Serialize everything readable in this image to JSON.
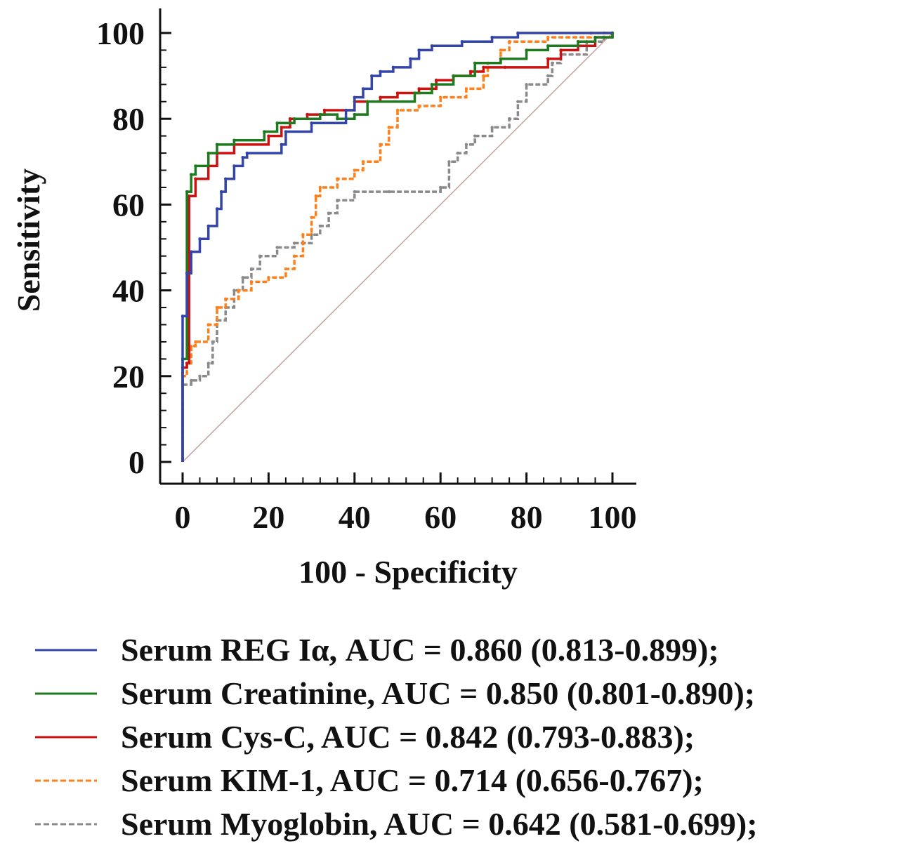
{
  "chart_data": {
    "type": "line",
    "title": "",
    "xlabel": "100 - Specificity",
    "ylabel": "Sensitivity",
    "xlim": [
      0,
      100
    ],
    "ylim": [
      0,
      100
    ],
    "x_ticks": [
      "0",
      "20",
      "40",
      "60",
      "80",
      "100"
    ],
    "y_ticks": [
      "0",
      "20",
      "40",
      "60",
      "80",
      "100"
    ],
    "grid": false,
    "legend_position": "bottom",
    "reference_line": {
      "color": "#c8a0a0",
      "points": [
        [
          0,
          0
        ],
        [
          100,
          100
        ]
      ]
    },
    "series": [
      {
        "name": "Serum REG Iα, AUC = 0.860 (0.813-0.899);",
        "color": "#3344aa",
        "dash": "solid",
        "points": [
          [
            0,
            0
          ],
          [
            0,
            34
          ],
          [
            1,
            34
          ],
          [
            1,
            44
          ],
          [
            2,
            44
          ],
          [
            2,
            49
          ],
          [
            4,
            49
          ],
          [
            4,
            52
          ],
          [
            6,
            52
          ],
          [
            6,
            55
          ],
          [
            8,
            55
          ],
          [
            8,
            59
          ],
          [
            9,
            59
          ],
          [
            9,
            63
          ],
          [
            10,
            63
          ],
          [
            10,
            66
          ],
          [
            12,
            66
          ],
          [
            12,
            69
          ],
          [
            14,
            69
          ],
          [
            14,
            71
          ],
          [
            15,
            71
          ],
          [
            15,
            72
          ],
          [
            23,
            72
          ],
          [
            23,
            74
          ],
          [
            24,
            74
          ],
          [
            24,
            77
          ],
          [
            30,
            77
          ],
          [
            30,
            79
          ],
          [
            38,
            79
          ],
          [
            38,
            82
          ],
          [
            40,
            82
          ],
          [
            40,
            85
          ],
          [
            42,
            85
          ],
          [
            42,
            87
          ],
          [
            44,
            87
          ],
          [
            44,
            90
          ],
          [
            46,
            90
          ],
          [
            46,
            91
          ],
          [
            49,
            91
          ],
          [
            49,
            92
          ],
          [
            53,
            92
          ],
          [
            53,
            94
          ],
          [
            55,
            94
          ],
          [
            55,
            96
          ],
          [
            58,
            96
          ],
          [
            58,
            97
          ],
          [
            65,
            97
          ],
          [
            65,
            98
          ],
          [
            72,
            98
          ],
          [
            72,
            99
          ],
          [
            78,
            99
          ],
          [
            78,
            100
          ],
          [
            100,
            100
          ]
        ]
      },
      {
        "name": "Serum Creatinine, AUC = 0.850 (0.801-0.890);",
        "color": "#1e7a1e",
        "dash": "solid",
        "points": [
          [
            0,
            0
          ],
          [
            0,
            24
          ],
          [
            1,
            24
          ],
          [
            1,
            63
          ],
          [
            2,
            63
          ],
          [
            2,
            67
          ],
          [
            3,
            67
          ],
          [
            3,
            69
          ],
          [
            6,
            69
          ],
          [
            6,
            72
          ],
          [
            8,
            72
          ],
          [
            8,
            74
          ],
          [
            12,
            74
          ],
          [
            12,
            75
          ],
          [
            19,
            75
          ],
          [
            19,
            77
          ],
          [
            22,
            77
          ],
          [
            22,
            79
          ],
          [
            26,
            79
          ],
          [
            26,
            80
          ],
          [
            32,
            80
          ],
          [
            32,
            81
          ],
          [
            36,
            81
          ],
          [
            36,
            80
          ],
          [
            40,
            80
          ],
          [
            40,
            81
          ],
          [
            43,
            81
          ],
          [
            43,
            84
          ],
          [
            54,
            84
          ],
          [
            54,
            86
          ],
          [
            58,
            86
          ],
          [
            58,
            88
          ],
          [
            63,
            88
          ],
          [
            63,
            90
          ],
          [
            68,
            90
          ],
          [
            68,
            93
          ],
          [
            74,
            93
          ],
          [
            74,
            94
          ],
          [
            80,
            94
          ],
          [
            80,
            96
          ],
          [
            85,
            96
          ],
          [
            85,
            97
          ],
          [
            92,
            97
          ],
          [
            92,
            98
          ],
          [
            96,
            98
          ],
          [
            96,
            99
          ],
          [
            100,
            99
          ],
          [
            100,
            100
          ]
        ]
      },
      {
        "name": "Serum Cys-C, AUC = 0.842 (0.793-0.883);",
        "color": "#cc1111",
        "dash": "solid",
        "points": [
          [
            0,
            0
          ],
          [
            0,
            22
          ],
          [
            1,
            22
          ],
          [
            1,
            23
          ],
          [
            1.5,
            23
          ],
          [
            1.5,
            62
          ],
          [
            3,
            62
          ],
          [
            3,
            66
          ],
          [
            6,
            66
          ],
          [
            6,
            69
          ],
          [
            8,
            69
          ],
          [
            8,
            72
          ],
          [
            12,
            72
          ],
          [
            12,
            74
          ],
          [
            20,
            74
          ],
          [
            20,
            76
          ],
          [
            23,
            76
          ],
          [
            23,
            78
          ],
          [
            25,
            78
          ],
          [
            25,
            80
          ],
          [
            29,
            80
          ],
          [
            29,
            81
          ],
          [
            33,
            81
          ],
          [
            33,
            82
          ],
          [
            40,
            82
          ],
          [
            40,
            84
          ],
          [
            46,
            84
          ],
          [
            46,
            85
          ],
          [
            50,
            85
          ],
          [
            50,
            86
          ],
          [
            55,
            86
          ],
          [
            55,
            87
          ],
          [
            59,
            87
          ],
          [
            59,
            89
          ],
          [
            63,
            89
          ],
          [
            63,
            90
          ],
          [
            67,
            90
          ],
          [
            67,
            91
          ],
          [
            70,
            91
          ],
          [
            70,
            92
          ],
          [
            75,
            92
          ],
          [
            75,
            92
          ],
          [
            85,
            92
          ],
          [
            85,
            94
          ],
          [
            88,
            94
          ],
          [
            88,
            96
          ],
          [
            92,
            96
          ],
          [
            92,
            97
          ],
          [
            96,
            97
          ],
          [
            96,
            99
          ],
          [
            100,
            99
          ],
          [
            100,
            100
          ]
        ]
      },
      {
        "name": "Serum KIM-1, AUC = 0.714 (0.656-0.767);",
        "color": "#ff7f1a",
        "dash": "dashed",
        "points": [
          [
            0,
            0
          ],
          [
            0,
            20
          ],
          [
            1,
            20
          ],
          [
            1,
            23
          ],
          [
            2,
            23
          ],
          [
            2,
            27
          ],
          [
            3,
            27
          ],
          [
            3,
            28
          ],
          [
            6,
            28
          ],
          [
            6,
            32
          ],
          [
            8,
            32
          ],
          [
            8,
            36
          ],
          [
            10,
            36
          ],
          [
            10,
            38
          ],
          [
            13,
            38
          ],
          [
            13,
            40
          ],
          [
            16,
            40
          ],
          [
            16,
            42
          ],
          [
            20,
            42
          ],
          [
            20,
            43
          ],
          [
            24,
            43
          ],
          [
            24,
            45
          ],
          [
            26,
            45
          ],
          [
            26,
            48
          ],
          [
            28,
            48
          ],
          [
            28,
            53
          ],
          [
            30,
            53
          ],
          [
            30,
            57
          ],
          [
            31,
            57
          ],
          [
            31,
            62
          ],
          [
            32,
            62
          ],
          [
            32,
            64
          ],
          [
            36,
            64
          ],
          [
            36,
            66
          ],
          [
            40,
            66
          ],
          [
            40,
            68
          ],
          [
            42,
            68
          ],
          [
            42,
            70
          ],
          [
            46,
            70
          ],
          [
            46,
            74
          ],
          [
            48,
            74
          ],
          [
            48,
            78
          ],
          [
            50,
            78
          ],
          [
            50,
            82
          ],
          [
            55,
            82
          ],
          [
            55,
            83
          ],
          [
            60,
            83
          ],
          [
            60,
            85
          ],
          [
            66,
            85
          ],
          [
            66,
            87
          ],
          [
            70,
            87
          ],
          [
            70,
            90
          ],
          [
            71,
            90
          ],
          [
            71,
            93
          ],
          [
            74,
            93
          ],
          [
            74,
            96
          ],
          [
            76,
            96
          ],
          [
            76,
            98
          ],
          [
            85,
            98
          ],
          [
            85,
            99
          ],
          [
            95,
            99
          ],
          [
            95,
            100
          ],
          [
            100,
            100
          ]
        ]
      },
      {
        "name": "Serum Myoglobin, AUC = 0.642 (0.581-0.699);",
        "color": "#8a8a8a",
        "dash": "dashed",
        "points": [
          [
            0,
            0
          ],
          [
            0,
            18
          ],
          [
            2,
            18
          ],
          [
            2,
            19
          ],
          [
            4,
            19
          ],
          [
            4,
            20
          ],
          [
            6,
            20
          ],
          [
            6,
            23
          ],
          [
            7,
            23
          ],
          [
            7,
            28
          ],
          [
            8,
            28
          ],
          [
            8,
            33
          ],
          [
            10,
            33
          ],
          [
            10,
            36
          ],
          [
            12,
            36
          ],
          [
            12,
            40
          ],
          [
            14,
            40
          ],
          [
            14,
            43
          ],
          [
            16,
            43
          ],
          [
            16,
            45
          ],
          [
            18,
            45
          ],
          [
            18,
            48
          ],
          [
            22,
            48
          ],
          [
            22,
            50
          ],
          [
            26,
            50
          ],
          [
            26,
            51
          ],
          [
            30,
            51
          ],
          [
            30,
            53
          ],
          [
            32,
            53
          ],
          [
            32,
            55
          ],
          [
            34,
            55
          ],
          [
            34,
            58
          ],
          [
            36,
            58
          ],
          [
            36,
            61
          ],
          [
            40,
            61
          ],
          [
            40,
            63
          ],
          [
            48,
            63
          ],
          [
            48,
            63
          ],
          [
            60,
            63
          ],
          [
            60,
            64
          ],
          [
            62,
            64
          ],
          [
            62,
            70
          ],
          [
            64,
            70
          ],
          [
            64,
            72
          ],
          [
            66,
            72
          ],
          [
            66,
            74
          ],
          [
            68,
            74
          ],
          [
            68,
            76
          ],
          [
            72,
            76
          ],
          [
            72,
            78
          ],
          [
            76,
            78
          ],
          [
            76,
            80
          ],
          [
            78,
            80
          ],
          [
            78,
            84
          ],
          [
            80,
            84
          ],
          [
            80,
            88
          ],
          [
            85,
            88
          ],
          [
            85,
            90
          ],
          [
            86,
            90
          ],
          [
            86,
            93
          ],
          [
            88,
            93
          ],
          [
            88,
            95
          ],
          [
            94,
            95
          ],
          [
            94,
            98
          ],
          [
            98,
            98
          ],
          [
            98,
            100
          ],
          [
            100,
            100
          ]
        ]
      }
    ]
  }
}
